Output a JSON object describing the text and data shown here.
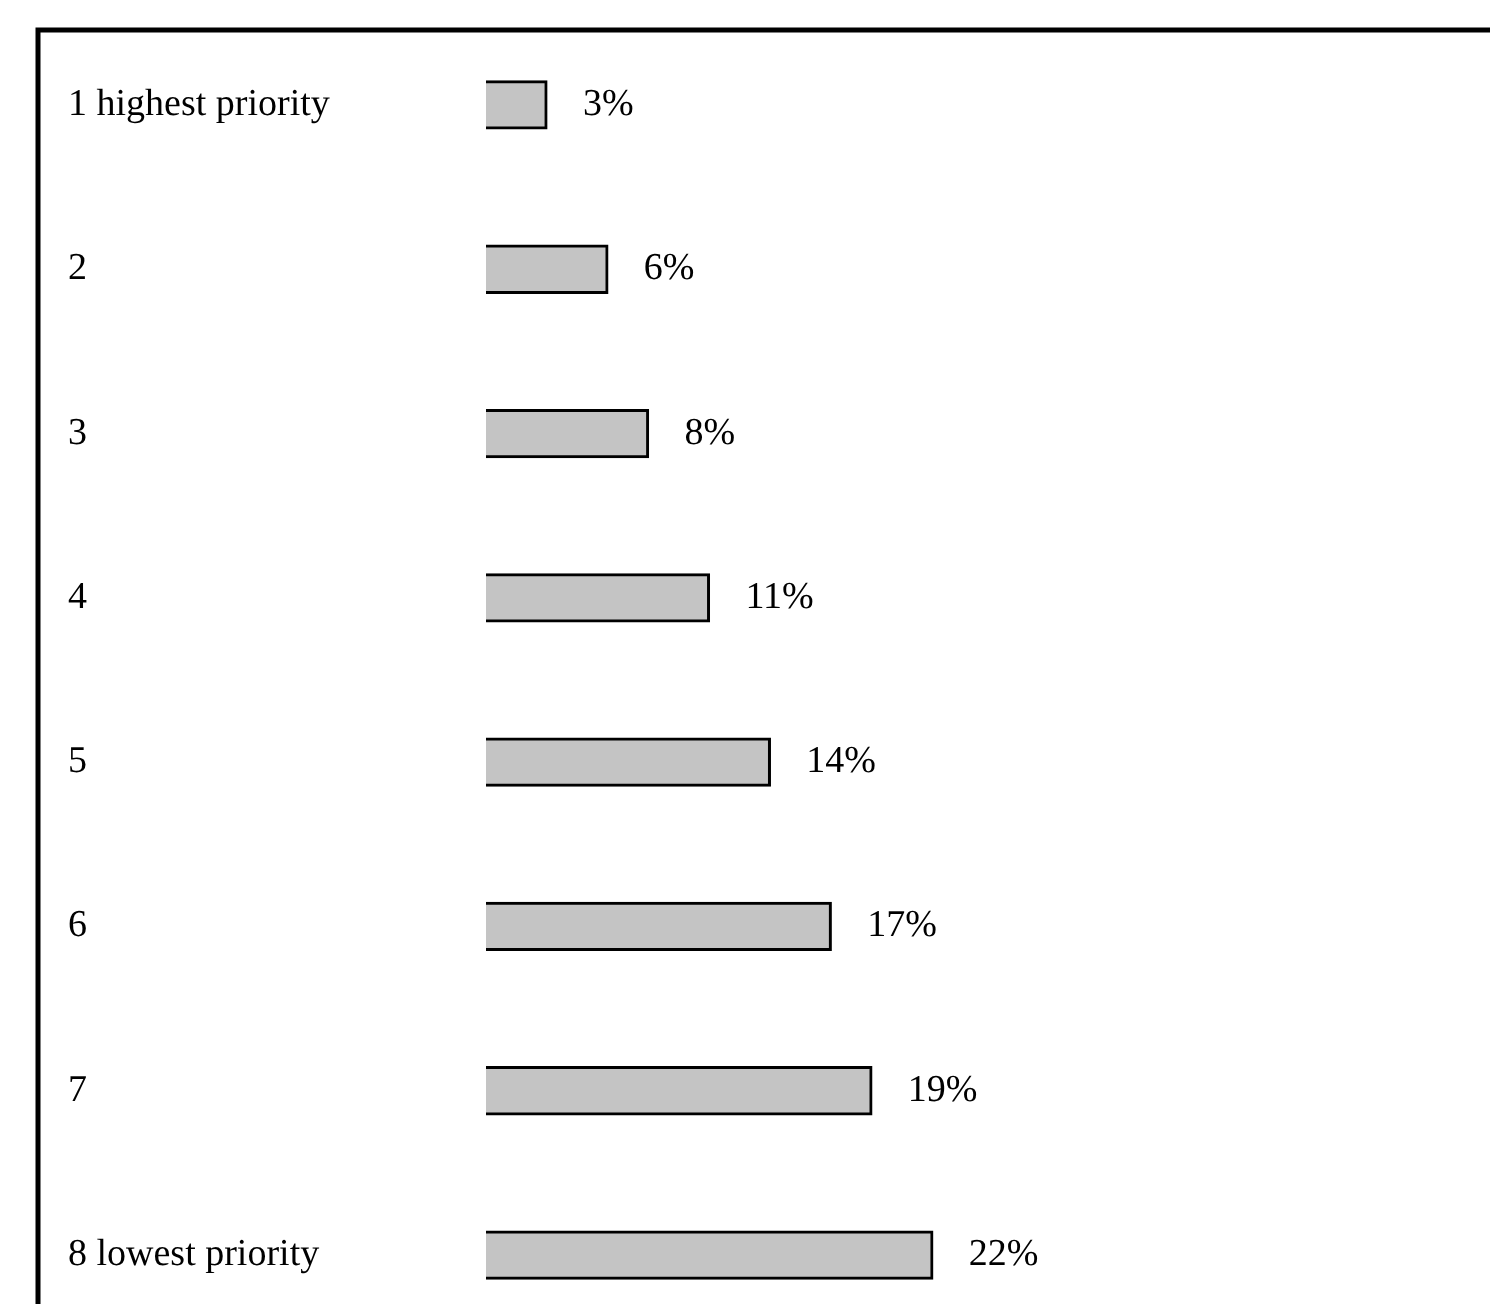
{
  "chart_data": {
    "type": "bar",
    "orientation": "horizontal",
    "categories": [
      "1 highest priority",
      "2",
      "3",
      "4",
      "5",
      "6",
      "7",
      "8 lowest priority"
    ],
    "values": [
      3,
      6,
      8,
      11,
      14,
      17,
      19,
      22
    ],
    "value_labels": [
      "3%",
      "6%",
      "8%",
      "11%",
      "14%",
      "17%",
      "19%",
      "22%"
    ],
    "color": "#c4c4c4",
    "grid": false,
    "legend": false
  }
}
